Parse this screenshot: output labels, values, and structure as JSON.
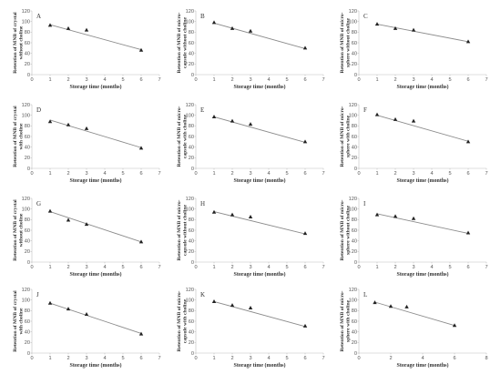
{
  "chart_data": [
    {
      "type": "scatter",
      "panel": "A",
      "ylabel": [
        "Retention of MNB of crystal",
        "without choline"
      ],
      "xlabel": "Storage time (months)",
      "xlim": [
        0,
        7
      ],
      "ylim": [
        0,
        120
      ],
      "x": [
        1,
        2,
        3,
        6
      ],
      "y": [
        93,
        87,
        84,
        46
      ],
      "trendline": [
        [
          1,
          94
        ],
        [
          6,
          47
        ]
      ]
    },
    {
      "type": "scatter",
      "panel": "B",
      "ylabel": [
        "Retention of MNB of micro-",
        "capsule without choline"
      ],
      "xlabel": "Storage time (months)",
      "xlim": [
        0,
        7
      ],
      "ylim": [
        0,
        120
      ],
      "x": [
        1,
        2,
        3,
        6
      ],
      "y": [
        98,
        87,
        82,
        50
      ],
      "trendline": [
        [
          1,
          97
        ],
        [
          6,
          49
        ]
      ]
    },
    {
      "type": "scatter",
      "panel": "C",
      "ylabel": [
        "Retention of MNB of micro-",
        "sphere without choline"
      ],
      "xlabel": "Storage time (months)",
      "xlim": [
        0,
        7
      ],
      "ylim": [
        0,
        120
      ],
      "x": [
        1,
        2,
        3,
        6
      ],
      "y": [
        95,
        87,
        84,
        62
      ],
      "trendline": [
        [
          1,
          95
        ],
        [
          6,
          62
        ]
      ]
    },
    {
      "type": "scatter",
      "panel": "D",
      "ylabel": [
        "Retention of MNB of crystal",
        "with choline"
      ],
      "xlabel": "Storage time (months)",
      "xlim": [
        0,
        7
      ],
      "ylim": [
        0,
        120
      ],
      "x": [
        1,
        2,
        3,
        6
      ],
      "y": [
        88,
        82,
        75,
        38
      ],
      "trendline": [
        [
          1,
          91
        ],
        [
          6,
          39
        ]
      ]
    },
    {
      "type": "scatter",
      "panel": "E",
      "ylabel": [
        "Retention of MNB of micro-",
        "capsule with choline"
      ],
      "xlabel": "Storage time (months)",
      "xlim": [
        0,
        7
      ],
      "ylim": [
        0,
        120
      ],
      "x": [
        1,
        2,
        3,
        6
      ],
      "y": [
        97,
        89,
        83,
        50
      ],
      "trendline": [
        [
          1,
          97
        ],
        [
          6,
          49
        ]
      ]
    },
    {
      "type": "scatter",
      "panel": "F",
      "ylabel": [
        "Retention of MNB of micro-",
        "sphere with choline"
      ],
      "xlabel": "Storage time (months)",
      "xlim": [
        0,
        7
      ],
      "ylim": [
        0,
        120
      ],
      "x": [
        1,
        2,
        3,
        6
      ],
      "y": [
        101,
        92,
        89,
        50
      ],
      "trendline": [
        [
          1,
          100
        ],
        [
          6,
          51
        ]
      ]
    },
    {
      "type": "scatter",
      "panel": "G",
      "ylabel": [
        "Retention of MNB of crystal",
        "without choline"
      ],
      "xlabel": "Storage time (months)",
      "xlim": [
        0,
        7
      ],
      "ylim": [
        0,
        120
      ],
      "x": [
        1,
        2,
        3,
        6
      ],
      "y": [
        96,
        79,
        71,
        38
      ],
      "trendline": [
        [
          1,
          95
        ],
        [
          6,
          38
        ]
      ]
    },
    {
      "type": "scatter",
      "panel": "H",
      "ylabel": [
        "Retention of MNB of micro-",
        "capsule without choline"
      ],
      "xlabel": "Storage time (months)",
      "xlim": [
        0,
        7
      ],
      "ylim": [
        0,
        120
      ],
      "x": [
        1,
        2,
        3,
        6
      ],
      "y": [
        94,
        89,
        85,
        54
      ],
      "trendline": [
        [
          1,
          95
        ],
        [
          6,
          53
        ]
      ]
    },
    {
      "type": "scatter",
      "panel": "I",
      "ylabel": [
        "Retention of MNB of micro-",
        "sphere without choline"
      ],
      "xlabel": "Storage time (months)",
      "xlim": [
        0,
        7
      ],
      "ylim": [
        0,
        120
      ],
      "x": [
        1,
        2,
        3,
        6
      ],
      "y": [
        89,
        86,
        82,
        55
      ],
      "trendline": [
        [
          1,
          91
        ],
        [
          6,
          54
        ]
      ]
    },
    {
      "type": "scatter",
      "panel": "J",
      "ylabel": [
        "Retention of MNB of crystal",
        "with choline"
      ],
      "xlabel": "Storage time (months)",
      "xlim": [
        0,
        7
      ],
      "ylim": [
        0,
        120
      ],
      "x": [
        1,
        2,
        3,
        6
      ],
      "y": [
        94,
        83,
        73,
        36
      ],
      "trendline": [
        [
          1,
          94
        ],
        [
          6,
          37
        ]
      ]
    },
    {
      "type": "scatter",
      "panel": "K",
      "ylabel": [
        "Retention of MNB of micro-",
        "capsule with choline"
      ],
      "xlabel": "Storage time (months)",
      "xlim": [
        0,
        7
      ],
      "ylim": [
        0,
        120
      ],
      "x": [
        1,
        2,
        3,
        6
      ],
      "y": [
        97,
        90,
        85,
        51
      ],
      "trendline": [
        [
          1,
          97
        ],
        [
          6,
          50
        ]
      ]
    },
    {
      "type": "scatter",
      "panel": "L",
      "ylabel": [
        "Retention of MNB of micro-",
        "sphere with choline"
      ],
      "xlabel": "Storage time (months)",
      "xlim": [
        0,
        8
      ],
      "ylim": [
        0,
        120
      ],
      "x": [
        1,
        2,
        3,
        6
      ],
      "y": [
        95,
        88,
        87,
        52
      ],
      "trendline": [
        [
          1,
          96
        ],
        [
          6,
          52
        ]
      ]
    }
  ]
}
